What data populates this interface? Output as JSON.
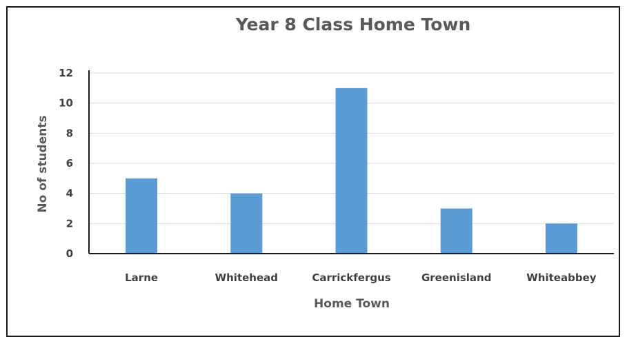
{
  "chart_data": {
    "type": "bar",
    "title": "Year 8 Class Home Town",
    "xlabel": "Home Town",
    "ylabel": "No of students",
    "categories": [
      "Larne",
      "Whitehead",
      "Carrickfergus",
      "Greenisland",
      "Whiteabbey"
    ],
    "values": [
      5,
      4,
      11,
      3,
      2
    ],
    "ylim": [
      0,
      12
    ],
    "yticks": [
      "0",
      "2",
      "4",
      "6",
      "8",
      "10",
      "12"
    ],
    "grid": true,
    "legend": "none",
    "colors": {
      "bar": "#5b9bd5",
      "grid": "#d9d9d9",
      "axis": "#1a1a1a"
    }
  }
}
